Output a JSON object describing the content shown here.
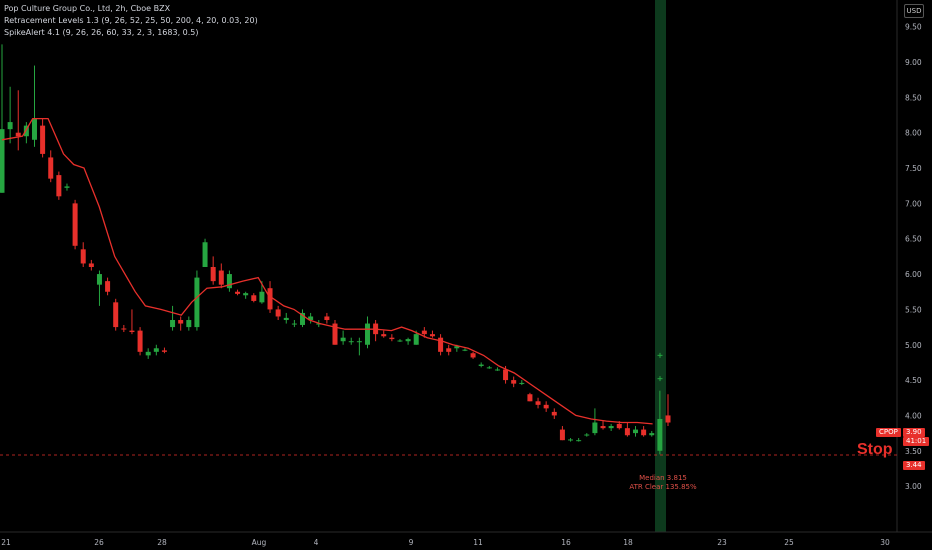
{
  "legend": {
    "line1": "Pop Culture Group Co., Ltd, 2h, Cboe BZX",
    "line2": "Retracement Levels 1.3 (9, 26, 52, 25, 50, 200, 4, 20, 0.03, 20)",
    "line3": "SpikeAlert 4.1 (9, 26, 26, 60, 33, 2, 3, 1683, 0.5)"
  },
  "currency": "USD",
  "tags": {
    "symbol": "CPOP",
    "last_price": "3.90",
    "countdown": "41:01",
    "stop_price": "3.44"
  },
  "stop_label": "Stop",
  "notes": {
    "median": "Median 3.815",
    "atr": "ATR Clear 135.85%"
  },
  "colors": {
    "up": "#26a641",
    "down": "#e8302b",
    "line": "#e8302b",
    "highlight": "#0d3a1d",
    "background": "#000000"
  },
  "chart_data": {
    "type": "candlestick",
    "y_range": [
      2.45,
      9.75
    ],
    "y_ticks": [
      "3.00",
      "3.50",
      "4.00",
      "4.50",
      "5.00",
      "5.50",
      "6.00",
      "6.50",
      "7.00",
      "7.50",
      "8.00",
      "8.50",
      "9.00",
      "9.50"
    ],
    "x_ticks": [
      "21",
      "26",
      "28",
      "Aug",
      "4",
      "9",
      "11",
      "16",
      "18",
      "23",
      "25",
      "30"
    ],
    "stop_level": 3.44,
    "candles": [
      {
        "o": 7.15,
        "h": 9.25,
        "l": 7.15,
        "c": 8.05
      },
      {
        "o": 8.05,
        "h": 8.65,
        "l": 7.85,
        "c": 8.15
      },
      {
        "o": 8.0,
        "h": 8.6,
        "l": 7.75,
        "c": 7.95
      },
      {
        "o": 7.95,
        "h": 8.15,
        "l": 7.85,
        "c": 8.1
      },
      {
        "o": 7.9,
        "h": 8.95,
        "l": 7.8,
        "c": 8.2
      },
      {
        "o": 8.1,
        "h": 8.2,
        "l": 7.65,
        "c": 7.7
      },
      {
        "o": 7.65,
        "h": 7.75,
        "l": 7.3,
        "c": 7.35
      },
      {
        "o": 7.4,
        "h": 7.45,
        "l": 7.05,
        "c": 7.1
      },
      {
        "o": 7.22,
        "h": 7.28,
        "l": 7.18,
        "c": 7.24
      },
      {
        "o": 7.0,
        "h": 7.05,
        "l": 6.35,
        "c": 6.4
      },
      {
        "o": 6.35,
        "h": 6.45,
        "l": 6.1,
        "c": 6.15
      },
      {
        "o": 6.15,
        "h": 6.2,
        "l": 6.05,
        "c": 6.1
      },
      {
        "o": 5.85,
        "h": 6.05,
        "l": 5.55,
        "c": 6.0
      },
      {
        "o": 5.9,
        "h": 5.95,
        "l": 5.7,
        "c": 5.75
      },
      {
        "o": 5.6,
        "h": 5.65,
        "l": 5.2,
        "c": 5.25
      },
      {
        "o": 5.23,
        "h": 5.28,
        "l": 5.18,
        "c": 5.22
      },
      {
        "o": 5.2,
        "h": 5.5,
        "l": 5.15,
        "c": 5.18
      },
      {
        "o": 5.2,
        "h": 5.25,
        "l": 4.85,
        "c": 4.9
      },
      {
        "o": 4.85,
        "h": 4.95,
        "l": 4.8,
        "c": 4.9
      },
      {
        "o": 4.9,
        "h": 5.0,
        "l": 4.85,
        "c": 4.95
      },
      {
        "o": 4.92,
        "h": 4.96,
        "l": 4.88,
        "c": 4.9
      },
      {
        "o": 5.25,
        "h": 5.55,
        "l": 5.2,
        "c": 5.35
      },
      {
        "o": 5.35,
        "h": 5.4,
        "l": 5.2,
        "c": 5.3
      },
      {
        "o": 5.25,
        "h": 5.4,
        "l": 5.2,
        "c": 5.35
      },
      {
        "o": 5.25,
        "h": 6.05,
        "l": 5.2,
        "c": 5.95
      },
      {
        "o": 6.1,
        "h": 6.5,
        "l": 6.1,
        "c": 6.45
      },
      {
        "o": 6.1,
        "h": 6.25,
        "l": 5.85,
        "c": 5.9
      },
      {
        "o": 6.05,
        "h": 6.15,
        "l": 5.8,
        "c": 5.85
      },
      {
        "o": 5.8,
        "h": 6.05,
        "l": 5.75,
        "c": 6.0
      },
      {
        "o": 5.75,
        "h": 5.78,
        "l": 5.7,
        "c": 5.72
      },
      {
        "o": 5.7,
        "h": 5.75,
        "l": 5.65,
        "c": 5.73
      },
      {
        "o": 5.7,
        "h": 5.73,
        "l": 5.6,
        "c": 5.62
      },
      {
        "o": 5.6,
        "h": 5.9,
        "l": 5.58,
        "c": 5.75
      },
      {
        "o": 5.8,
        "h": 5.9,
        "l": 5.45,
        "c": 5.5
      },
      {
        "o": 5.5,
        "h": 5.55,
        "l": 5.35,
        "c": 5.4
      },
      {
        "o": 5.35,
        "h": 5.45,
        "l": 5.3,
        "c": 5.38
      },
      {
        "o": 5.3,
        "h": 5.35,
        "l": 5.25,
        "c": 5.3
      },
      {
        "o": 5.28,
        "h": 5.5,
        "l": 5.25,
        "c": 5.45
      },
      {
        "o": 5.35,
        "h": 5.45,
        "l": 5.3,
        "c": 5.4
      },
      {
        "o": 5.3,
        "h": 5.35,
        "l": 5.25,
        "c": 5.3
      },
      {
        "o": 5.4,
        "h": 5.45,
        "l": 5.3,
        "c": 5.35
      },
      {
        "o": 5.3,
        "h": 5.35,
        "l": 5.0,
        "c": 5.0
      },
      {
        "o": 5.05,
        "h": 5.2,
        "l": 5.0,
        "c": 5.1
      },
      {
        "o": 5.05,
        "h": 5.1,
        "l": 5.0,
        "c": 5.05
      },
      {
        "o": 5.05,
        "h": 5.1,
        "l": 4.85,
        "c": 5.05
      },
      {
        "o": 5.0,
        "h": 5.4,
        "l": 4.95,
        "c": 5.3
      },
      {
        "o": 5.3,
        "h": 5.35,
        "l": 5.05,
        "c": 5.15
      },
      {
        "o": 5.15,
        "h": 5.2,
        "l": 5.1,
        "c": 5.12
      },
      {
        "o": 5.1,
        "h": 5.15,
        "l": 5.05,
        "c": 5.08
      },
      {
        "o": 5.06,
        "h": 5.08,
        "l": 5.04,
        "c": 5.06
      },
      {
        "o": 5.05,
        "h": 5.1,
        "l": 5.0,
        "c": 5.08
      },
      {
        "o": 5.0,
        "h": 5.2,
        "l": 5.0,
        "c": 5.15
      },
      {
        "o": 5.2,
        "h": 5.25,
        "l": 5.1,
        "c": 5.15
      },
      {
        "o": 5.15,
        "h": 5.2,
        "l": 5.1,
        "c": 5.12
      },
      {
        "o": 5.1,
        "h": 5.15,
        "l": 4.85,
        "c": 4.9
      },
      {
        "o": 4.95,
        "h": 5.0,
        "l": 4.85,
        "c": 4.9
      },
      {
        "o": 4.95,
        "h": 5.0,
        "l": 4.9,
        "c": 4.98
      },
      {
        "o": 4.93,
        "h": 4.95,
        "l": 4.91,
        "c": 4.93
      },
      {
        "o": 4.88,
        "h": 4.9,
        "l": 4.8,
        "c": 4.82
      },
      {
        "o": 4.7,
        "h": 4.75,
        "l": 4.68,
        "c": 4.72
      },
      {
        "o": 4.68,
        "h": 4.7,
        "l": 4.66,
        "c": 4.68
      },
      {
        "o": 4.65,
        "h": 4.68,
        "l": 4.63,
        "c": 4.65
      },
      {
        "o": 4.65,
        "h": 4.7,
        "l": 4.45,
        "c": 4.5
      },
      {
        "o": 4.5,
        "h": 4.55,
        "l": 4.4,
        "c": 4.45
      },
      {
        "o": 4.45,
        "h": 4.5,
        "l": 4.43,
        "c": 4.46
      },
      {
        "o": 4.3,
        "h": 4.32,
        "l": 4.2,
        "c": 4.2
      },
      {
        "o": 4.2,
        "h": 4.25,
        "l": 4.1,
        "c": 4.15
      },
      {
        "o": 4.15,
        "h": 4.2,
        "l": 4.05,
        "c": 4.1
      },
      {
        "o": 4.05,
        "h": 4.1,
        "l": 3.95,
        "c": 4.0
      },
      {
        "o": 3.8,
        "h": 3.85,
        "l": 3.65,
        "c": 3.65
      },
      {
        "o": 3.65,
        "h": 3.68,
        "l": 3.63,
        "c": 3.66
      },
      {
        "o": 3.65,
        "h": 3.68,
        "l": 3.63,
        "c": 3.65
      },
      {
        "o": 3.72,
        "h": 3.75,
        "l": 3.7,
        "c": 3.73
      },
      {
        "o": 3.75,
        "h": 4.1,
        "l": 3.72,
        "c": 3.9
      },
      {
        "o": 3.85,
        "h": 3.92,
        "l": 3.8,
        "c": 3.82
      },
      {
        "o": 3.82,
        "h": 3.88,
        "l": 3.78,
        "c": 3.85
      },
      {
        "o": 3.88,
        "h": 3.92,
        "l": 3.8,
        "c": 3.82
      },
      {
        "o": 3.82,
        "h": 3.9,
        "l": 3.7,
        "c": 3.72
      },
      {
        "o": 3.75,
        "h": 3.85,
        "l": 3.7,
        "c": 3.8
      },
      {
        "o": 3.8,
        "h": 3.85,
        "l": 3.7,
        "c": 3.72
      },
      {
        "o": 3.72,
        "h": 3.78,
        "l": 3.7,
        "c": 3.75
      },
      {
        "o": 3.5,
        "h": 4.35,
        "l": 3.45,
        "c": 3.95
      },
      {
        "o": 4.0,
        "h": 4.3,
        "l": 3.85,
        "c": 3.9
      }
    ],
    "red_line": [
      [
        0,
        7.9
      ],
      [
        4,
        7.95
      ],
      [
        6,
        8.2
      ],
      [
        9,
        8.2
      ],
      [
        12,
        7.7
      ],
      [
        14,
        7.55
      ],
      [
        16,
        7.5
      ],
      [
        19,
        6.95
      ],
      [
        22,
        6.25
      ],
      [
        26,
        5.75
      ],
      [
        28,
        5.55
      ],
      [
        31,
        5.5
      ],
      [
        35,
        5.42
      ],
      [
        37,
        5.6
      ],
      [
        40,
        5.8
      ],
      [
        43,
        5.82
      ],
      [
        47,
        5.9
      ],
      [
        50,
        5.95
      ],
      [
        52,
        5.7
      ],
      [
        55,
        5.55
      ],
      [
        57,
        5.5
      ],
      [
        60,
        5.35
      ],
      [
        62,
        5.3
      ],
      [
        65,
        5.25
      ],
      [
        67,
        5.22
      ],
      [
        70,
        5.22
      ],
      [
        73,
        5.22
      ],
      [
        76,
        5.2
      ],
      [
        78,
        5.25
      ],
      [
        80,
        5.2
      ],
      [
        83,
        5.1
      ],
      [
        86,
        5.05
      ],
      [
        88,
        5.0
      ],
      [
        91,
        4.95
      ],
      [
        94,
        4.85
      ],
      [
        97,
        4.7
      ],
      [
        100,
        4.6
      ],
      [
        103,
        4.45
      ],
      [
        106,
        4.3
      ],
      [
        109,
        4.15
      ],
      [
        112,
        4.0
      ],
      [
        115,
        3.95
      ],
      [
        118,
        3.92
      ],
      [
        121,
        3.9
      ],
      [
        124,
        3.9
      ],
      [
        127,
        3.88
      ]
    ],
    "red_line_x_scale": 130
  }
}
